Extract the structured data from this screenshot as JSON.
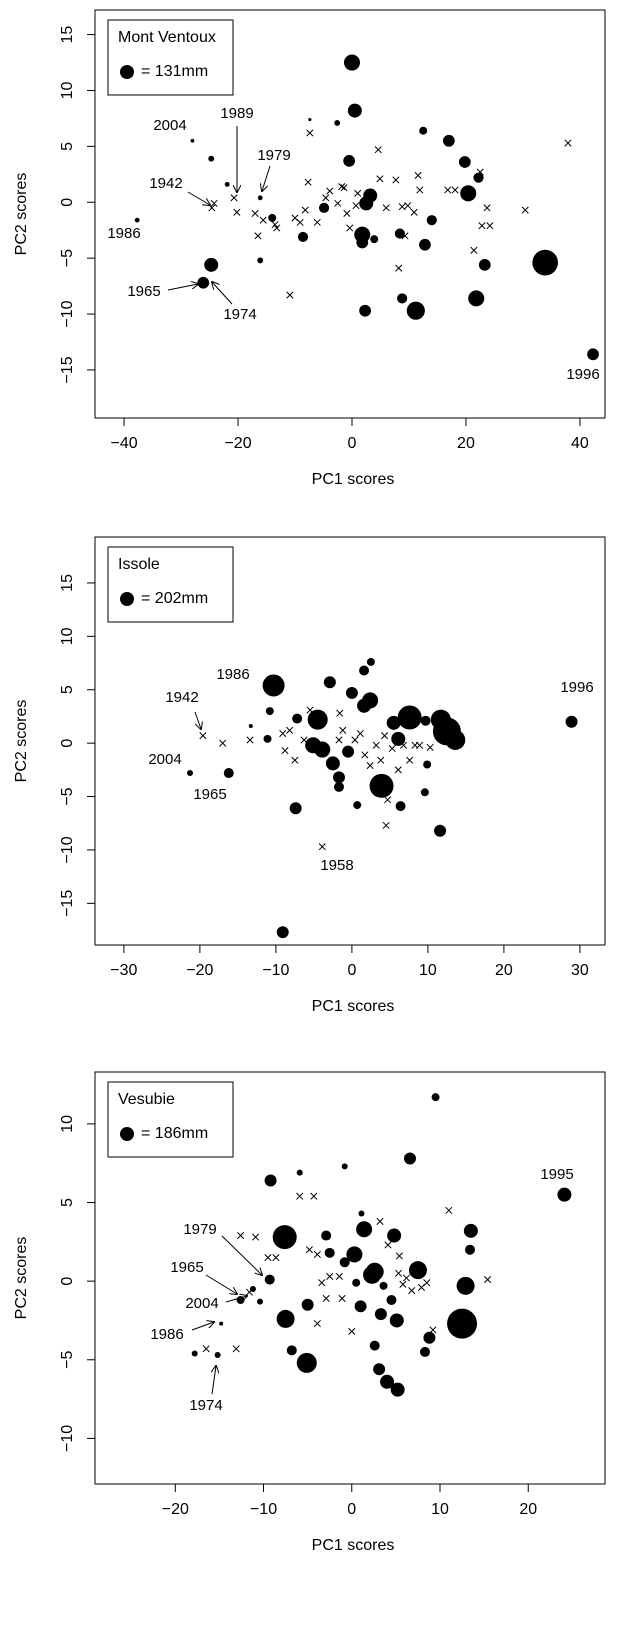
{
  "chart_data": [
    {
      "type": "scatter",
      "x_label": "PC1 scores",
      "y_label": "PC2 scores",
      "color": "#000000",
      "legend_title": "Mont Ventoux",
      "legend_label": "= 131mm",
      "legend_size": 131,
      "xlim": [
        -45.1,
        44.4
      ],
      "ylim": [
        -19.3,
        17.2
      ],
      "xticks": [
        {
          "value": -40,
          "label": "−40"
        },
        {
          "value": -20,
          "label": "−20"
        },
        0,
        20,
        40
      ],
      "yticks": [
        {
          "value": -15,
          "label": "−15"
        },
        {
          "value": -10,
          "label": "−10"
        },
        {
          "value": -5,
          "label": "−5"
        },
        0,
        5,
        10,
        15
      ],
      "series": [
        {
          "marker": "x",
          "x": [
            -24.6,
            -24.2,
            -20.7,
            -20.2,
            -17,
            -16.5,
            -15.6,
            -13.5,
            -13.2,
            -10.9,
            -10,
            -9.1,
            -8.2,
            -7.7,
            -7.4,
            -6.1,
            -4.6,
            -3.9,
            -2.5,
            -1.8,
            -1.4,
            -0.9,
            -0.4,
            0.7,
            1,
            4.6,
            4.9,
            6,
            7.7,
            8.8,
            8.2,
            9.3,
            9.8,
            10.9,
            11.6,
            11.9,
            16.8,
            18.1,
            21.4,
            22.5,
            22.8,
            23.7,
            24.2,
            30.4,
            37.9
          ],
          "y": [
            -0.5,
            -0.1,
            0.4,
            -0.9,
            -1,
            -3,
            -1.6,
            -2,
            -2.3,
            -8.3,
            -1.4,
            -1.8,
            -0.7,
            1.8,
            6.2,
            -1.8,
            0.4,
            1,
            -0.1,
            1.4,
            1.3,
            -1,
            -2.3,
            -0.3,
            0.8,
            4.7,
            2.1,
            -0.5,
            2,
            -0.4,
            -5.9,
            -3,
            -0.3,
            -0.9,
            2.4,
            1.1,
            1.1,
            1.1,
            -4.3,
            2.7,
            -2.1,
            -0.5,
            -2.1,
            -0.7,
            5.3
          ]
        },
        {
          "marker": "o",
          "x": [
            0,
            0.5,
            -28,
            -7.4,
            -24.7,
            -21.9,
            -16.1,
            -2.6,
            -0.5,
            12.5,
            17,
            19.8,
            20.4,
            22.2,
            3.2,
            2.5,
            1.8,
            1.8,
            -4.9,
            -8.6,
            3.9,
            8.4,
            14,
            12.8,
            23.3,
            33.9,
            2.3,
            8.8,
            11.2,
            21.8,
            42.3,
            -24.7,
            -26.1,
            -16.1,
            -37.7,
            -14
          ],
          "y": [
            12.5,
            8.2,
            5.5,
            7.4,
            3.9,
            1.6,
            0.4,
            7.1,
            3.7,
            6.4,
            5.5,
            3.6,
            0.8,
            2.2,
            0.6,
            -0.1,
            -2.9,
            -3.6,
            -0.5,
            -3.1,
            -3.3,
            -2.8,
            -1.6,
            -3.8,
            -5.6,
            -5.4,
            -9.7,
            -8.6,
            -9.7,
            -8.6,
            -13.6,
            -5.6,
            -7.2,
            -5.2,
            -1.6,
            -1.4
          ],
          "sizes": [
            150,
            131,
            35,
            30,
            55,
            45,
            45,
            55,
            110,
            75,
            110,
            110,
            150,
            95,
            131,
            131,
            150,
            110,
            95,
            95,
            75,
            95,
            95,
            110,
            110,
            240,
            110,
            95,
            170,
            150,
            110,
            131,
            110,
            55,
            45,
            75
          ]
        }
      ],
      "annotations": [
        "2004",
        "1989",
        "1979",
        "1942",
        "1986",
        "1965",
        "1974",
        "1996"
      ]
    },
    {
      "type": "scatter",
      "x_label": "PC1 scores",
      "y_label": "PC2 scores",
      "color": "#000000",
      "legend_title": "Issole",
      "legend_label": "= 202mm",
      "legend_size": 202,
      "xlim": [
        -33.8,
        33.3
      ],
      "ylim": [
        -18.9,
        19.3
      ],
      "xticks": [
        {
          "value": -30,
          "label": "−30"
        },
        {
          "value": -20,
          "label": "−20"
        },
        {
          "value": -10,
          "label": "−10"
        },
        0,
        10,
        20,
        30
      ],
      "yticks": [
        {
          "value": -15,
          "label": "−15"
        },
        {
          "value": -10,
          "label": "−10"
        },
        {
          "value": -5,
          "label": "−5"
        },
        0,
        5,
        10,
        15
      ],
      "series": [
        {
          "marker": "x",
          "x": [
            -19.6,
            -17,
            -13.4,
            -9.1,
            -8.8,
            -8.2,
            -7.5,
            -6.3,
            -5.5,
            -3.9,
            -1.6,
            -1.2,
            0.4,
            1.1,
            1.7,
            2.4,
            3.2,
            3.8,
            4.3,
            5.3,
            6.1,
            4.7,
            4.5,
            6.8,
            7.6,
            8.3,
            8.9,
            10.3,
            -1.7
          ],
          "y": [
            0.7,
            0,
            0.3,
            0.9,
            -0.7,
            1.2,
            -1.6,
            0.3,
            3.1,
            -9.7,
            2.8,
            1.2,
            0.3,
            0.9,
            -1.1,
            -2.1,
            -0.2,
            -1.6,
            0.7,
            -0.5,
            -2.5,
            -5.3,
            -7.7,
            -0.2,
            -1.6,
            -0.2,
            -0.2,
            -0.4,
            0.3
          ]
        },
        {
          "marker": "o",
          "x": [
            -10.3,
            -2.9,
            0,
            1.6,
            2.5,
            2.4,
            -4.5,
            1.6,
            7.6,
            11.7,
            12.5,
            13.6,
            5.5,
            6.1,
            9.7,
            -5.1,
            -3.9,
            -2.5,
            -0.5,
            -1.7,
            -1.7,
            3.9,
            0.7,
            6.4,
            9.6,
            9.9,
            11.6,
            -7.4,
            -7.2,
            -11.1,
            -10.8,
            -13.3,
            -16.2,
            -21.3,
            28.9,
            -9.1
          ],
          "y": [
            5.4,
            5.7,
            4.7,
            6.8,
            7.6,
            4,
            2.2,
            3.5,
            2.4,
            2.2,
            1.1,
            0.3,
            1.9,
            0.4,
            2.1,
            -0.2,
            -0.6,
            -1.9,
            -0.8,
            -3.2,
            -4.1,
            -4,
            -5.8,
            -5.9,
            -4.6,
            -2,
            -8.2,
            -6.1,
            2.3,
            0.4,
            3,
            1.6,
            -2.8,
            -2.8,
            2,
            -17.7
          ],
          "sizes": [
            317,
            173,
            173,
            144,
            115,
            231,
            289,
            202,
            346,
            289,
            404,
            289,
            202,
            202,
            144,
            231,
            231,
            202,
            173,
            173,
            144,
            346,
            115,
            144,
            115,
            115,
            173,
            173,
            144,
            115,
            115,
            58,
            144,
            87,
            173,
            173
          ]
        }
      ],
      "annotations": [
        "1986",
        "1942",
        "2004",
        "1965",
        "1958",
        "1996"
      ]
    },
    {
      "type": "scatter",
      "x_label": "PC1 scores",
      "y_label": "PC2 scores",
      "color": "#000000",
      "legend_title": "Vesubie",
      "legend_label": "= 186mm",
      "legend_size": 186,
      "xlim": [
        -29.1,
        28.7
      ],
      "ylim": [
        -12.9,
        13.3
      ],
      "xticks": [
        {
          "value": -20,
          "label": "−20"
        },
        {
          "value": -10,
          "label": "−10"
        },
        0,
        10,
        20
      ],
      "yticks": [
        {
          "value": -10,
          "label": "−10"
        },
        {
          "value": -5,
          "label": "−5"
        },
        0,
        5,
        10
      ],
      "series": [
        {
          "marker": "x",
          "x": [
            -12.6,
            -10.9,
            -9.5,
            -8.6,
            -16.5,
            -11.6,
            -5.9,
            -4.3,
            -4.8,
            -3.9,
            -3.4,
            -2.5,
            -2.9,
            -3.9,
            -1.4,
            -1.1,
            0,
            0.5,
            3.2,
            4.1,
            5.4,
            6.2,
            5.8,
            6.8,
            7.9,
            8.5,
            9.2,
            11,
            15.4,
            5.3,
            -13.1
          ],
          "y": [
            2.9,
            2.8,
            1.5,
            1.5,
            -4.3,
            -0.7,
            5.4,
            5.4,
            2,
            1.7,
            -0.1,
            0.3,
            -1.1,
            -2.7,
            0.3,
            -1.1,
            -3.2,
            1.8,
            3.8,
            2.3,
            1.6,
            0.2,
            -0.2,
            -0.6,
            -0.4,
            -0.1,
            -3.1,
            4.5,
            0.1,
            0.5,
            -4.3
          ]
        },
        {
          "marker": "o",
          "x": [
            9.5,
            6.6,
            24.1,
            -9.2,
            -7.6,
            -2.9,
            1.4,
            4.8,
            13.5,
            13.4,
            1.1,
            -5.9,
            -0.8,
            0.3,
            2.3,
            2.6,
            7.5,
            -2.5,
            -0.8,
            0.5,
            3.6,
            4.5,
            -5,
            1,
            3.3,
            5.1,
            -7.5,
            12.5,
            12.9,
            8.8,
            2.6,
            -6.8,
            -5.1,
            3.1,
            4,
            5.2,
            8.3,
            -12.6,
            -9.3,
            -11.2,
            -10.4,
            -14.8,
            -17.8,
            -15.2
          ],
          "y": [
            11.7,
            7.8,
            5.5,
            6.4,
            2.8,
            2.9,
            3.3,
            2.9,
            3.2,
            2,
            4.3,
            6.9,
            7.3,
            1.7,
            0.4,
            0.6,
            0.7,
            1.8,
            1.2,
            -0.1,
            -0.3,
            -1.2,
            -1.5,
            -1.6,
            -2.1,
            -2.5,
            -2.4,
            -2.7,
            -0.3,
            -3.6,
            -4.1,
            -4.4,
            -5.2,
            -5.6,
            -6.4,
            -6.9,
            -4.5,
            -1.2,
            0.1,
            -0.5,
            -1.3,
            -2.7,
            -4.6,
            -4.7
          ],
          "sizes": [
            106,
            159,
            186,
            159,
            319,
            133,
            213,
            186,
            186,
            133,
            80,
            80,
            80,
            213,
            239,
            239,
            239,
            133,
            133,
            106,
            106,
            133,
            159,
            159,
            159,
            186,
            239,
            399,
            239,
            159,
            133,
            133,
            266,
            159,
            186,
            186,
            133,
            106,
            133,
            80,
            80,
            53,
            80,
            80
          ]
        }
      ],
      "annotations": [
        "1995",
        "1979",
        "1965",
        "2004",
        "1986",
        "1974"
      ]
    }
  ]
}
